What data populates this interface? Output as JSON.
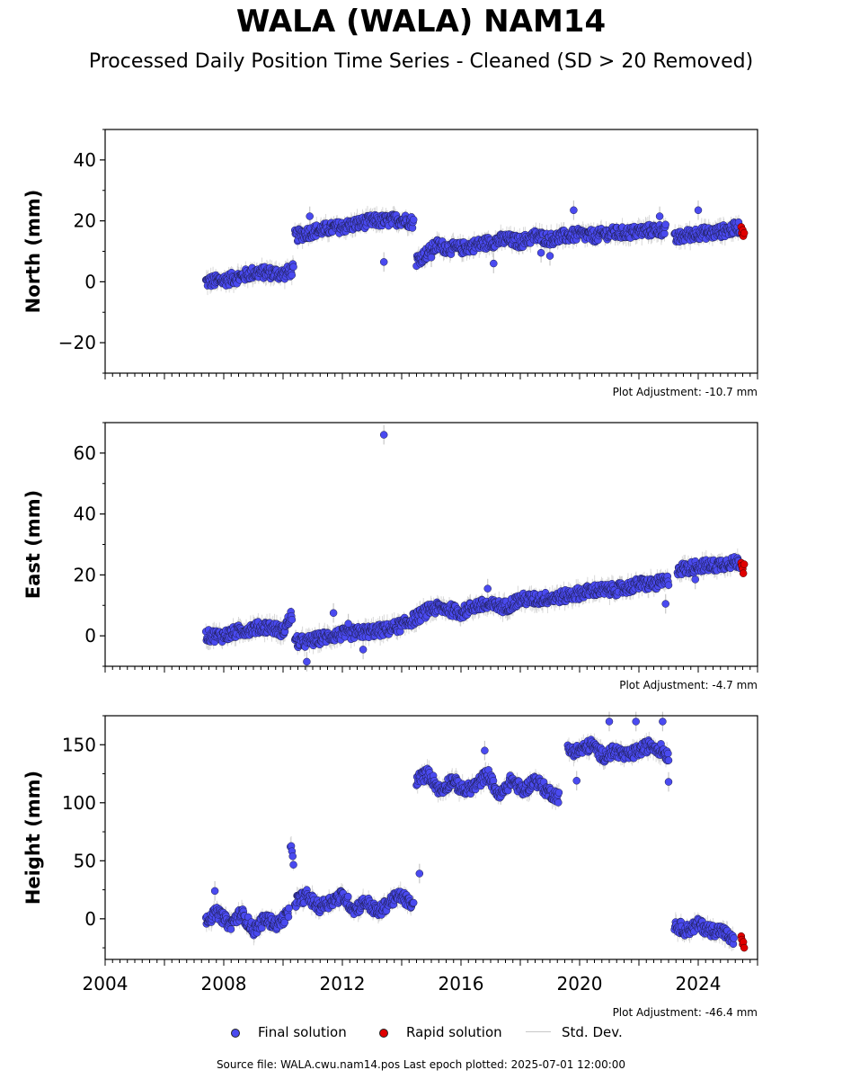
{
  "title": "WALA (WALA) NAM14",
  "subtitle": "Processed Daily Position Time Series - Cleaned (SD > 20 Removed)",
  "legend": {
    "final_label": "Final solution",
    "rapid_label": "Rapid solution",
    "std_label": "Std. Dev."
  },
  "footer": {
    "source": "Source file: WALA.cwu.nam14.pos  Last epoch plotted: 2025-07-01 12:00:00"
  },
  "colors": {
    "final": "#4a4af0",
    "rapid": "#e00000",
    "stddev": "#c8c8c8"
  },
  "chart_data": [
    {
      "type": "scatter",
      "component": "north",
      "ylabel": "North (mm)",
      "adjustment_label": "Plot Adjustment: -10.7 mm",
      "xlim": [
        2004.0,
        2026.0
      ],
      "ylim": [
        -30,
        50
      ],
      "yticks": [
        -20,
        0,
        20,
        40
      ],
      "ytick_labels": [
        "−20",
        "0",
        "20",
        "40"
      ],
      "x_tick_labels": [],
      "series": [
        {
          "name": "Final solution",
          "segments": [
            {
              "x": [
                2007.4,
                2008.0,
                2008.5,
                2009.0,
                2009.5,
                2010.0,
                2010.35
              ],
              "y": [
                0,
                0.5,
                1.5,
                3,
                3,
                2.5,
                4
              ]
            },
            {
              "x": [
                2010.4,
                2010.8,
                2011.2,
                2011.6,
                2012.0,
                2012.5,
                2013.0,
                2013.5,
                2014.0,
                2014.4
              ],
              "y": [
                15,
                16,
                17,
                17.5,
                18,
                19,
                20,
                20,
                20.5,
                19.5
              ]
            },
            {
              "x": [
                2014.5,
                2014.8,
                2015.2,
                2015.6,
                2016.0,
                2016.5,
                2017.0,
                2017.5,
                2018.0,
                2018.5,
                2019.0,
                2019.5,
                2020.0,
                2020.5,
                2021.0,
                2021.5,
                2022.0,
                2022.5,
                2022.9
              ],
              "y": [
                7,
                9,
                12,
                11,
                11,
                12,
                13,
                14,
                13,
                15,
                14,
                15,
                15.5,
                15,
                16,
                16,
                16.5,
                17,
                17
              ]
            },
            {
              "x": [
                2023.2,
                2023.5,
                2024.0,
                2024.5,
                2025.0,
                2025.4
              ],
              "y": [
                14,
                15,
                16,
                16,
                17,
                18
              ]
            }
          ],
          "outliers": {
            "x": [
              2010.9,
              2013.4,
              2017.1,
              2018.7,
              2019.0,
              2019.8,
              2022.7,
              2024.0,
              2015.0
            ],
            "y": [
              21.5,
              6.5,
              6,
              9.5,
              8.5,
              23.5,
              21.5,
              23.5,
              8
            ]
          }
        },
        {
          "name": "Rapid solution",
          "x": [
            2025.45,
            2025.47,
            2025.5,
            2025.52,
            2025.55
          ],
          "y": [
            18,
            16,
            17,
            15,
            16
          ]
        }
      ]
    },
    {
      "type": "scatter",
      "component": "east",
      "ylabel": "East (mm)",
      "adjustment_label": "Plot Adjustment: -4.7 mm",
      "xlim": [
        2004.0,
        2026.0
      ],
      "ylim": [
        -10,
        70
      ],
      "yticks": [
        0,
        20,
        40,
        60
      ],
      "ytick_labels": [
        "0",
        "20",
        "40",
        "60"
      ],
      "x_tick_labels": [],
      "series": [
        {
          "name": "Final solution",
          "segments": [
            {
              "x": [
                2007.4,
                2008.0,
                2008.5,
                2009.0,
                2009.5,
                2010.0,
                2010.3
              ],
              "y": [
                0,
                0,
                1.5,
                2.5,
                3,
                1.5,
                7
              ]
            },
            {
              "x": [
                2010.4,
                2010.8,
                2011.2,
                2011.6,
                2012.0,
                2012.5,
                2013.0,
                2013.5,
                2014.0,
                2014.5,
                2015.0,
                2015.5,
                2016.0,
                2016.5,
                2017.0,
                2017.5,
                2018.0,
                2018.5,
                2019.0,
                2019.5,
                2020.0,
                2020.5,
                2021.0,
                2021.5,
                2022.0,
                2022.5,
                2023.0
              ],
              "y": [
                -2,
                -2,
                -1,
                0,
                0.5,
                1,
                1.5,
                2,
                3.5,
                6,
                9,
                9,
                7.5,
                10,
                10,
                9.5,
                12,
                12,
                12.5,
                13,
                14,
                15,
                15,
                15.5,
                17,
                17,
                18
              ]
            },
            {
              "x": [
                2023.3,
                2023.6,
                2024.0,
                2024.5,
                2025.0,
                2025.4
              ],
              "y": [
                22,
                22,
                23,
                23,
                24,
                24
              ]
            }
          ],
          "outliers": {
            "x": [
              2013.4,
              2010.8,
              2011.7,
              2012.7,
              2016.9,
              2022.9,
              2023.9,
              2012.2
            ],
            "y": [
              66,
              -8.5,
              7.5,
              -4.5,
              15.5,
              10.5,
              18.5,
              4
            ]
          }
        },
        {
          "name": "Rapid solution",
          "x": [
            2025.45,
            2025.47,
            2025.5,
            2025.52,
            2025.55
          ],
          "y": [
            24,
            23,
            22,
            20.5,
            23.5
          ]
        }
      ]
    },
    {
      "type": "scatter",
      "component": "height",
      "ylabel": "Height (mm)",
      "adjustment_label": "Plot Adjustment: -46.4 mm",
      "xlim": [
        2004.0,
        2026.0
      ],
      "ylim": [
        -35,
        175
      ],
      "yticks": [
        0,
        50,
        100,
        150
      ],
      "ytick_labels": [
        "0",
        "50",
        "100",
        "150"
      ],
      "x_tick_values": [
        2004,
        2008,
        2012,
        2016,
        2020,
        2024
      ],
      "x_tick_labels": [
        "2004",
        "2008",
        "2012",
        "2016",
        "2020",
        "2024"
      ],
      "series": [
        {
          "name": "Final solution",
          "segments": [
            {
              "x": [
                2007.4,
                2007.8,
                2008.2,
                2008.6,
                2009.0,
                2009.4,
                2009.8,
                2010.2
              ],
              "y": [
                0,
                5,
                -5,
                5,
                -10,
                0,
                -5,
                5
              ]
            },
            {
              "x": [
                2010.25,
                2010.35
              ],
              "y": [
                60,
                50
              ]
            },
            {
              "x": [
                2010.4,
                2010.8,
                2011.2,
                2011.6,
                2012.0,
                2012.4,
                2012.8,
                2013.2,
                2013.6,
                2014.0,
                2014.4
              ],
              "y": [
                15,
                20,
                10,
                15,
                20,
                8,
                15,
                5,
                15,
                20,
                10
              ]
            },
            {
              "x": [
                2014.5,
                2014.9,
                2015.3,
                2015.7,
                2016.1,
                2016.5,
                2016.9,
                2017.3,
                2017.7,
                2018.1,
                2018.5,
                2018.9,
                2019.3
              ],
              "y": [
                120,
                125,
                110,
                120,
                110,
                115,
                125,
                105,
                120,
                110,
                120,
                110,
                105
              ]
            },
            {
              "x": [
                2019.6,
                2020.0,
                2020.4,
                2020.8,
                2021.2,
                2021.6,
                2022.0,
                2022.4,
                2022.8,
                2023.0
              ],
              "y": [
                145,
                145,
                150,
                140,
                145,
                140,
                145,
                150,
                145,
                140
              ]
            },
            {
              "x": [
                2023.2,
                2023.6,
                2024.0,
                2024.4,
                2024.8,
                2025.2
              ],
              "y": [
                -5,
                -10,
                -5,
                -10,
                -10,
                -20
              ]
            }
          ],
          "outliers": {
            "x": [
              2007.7,
              2014.6,
              2016.8,
              2019.9,
              2021.0,
              2021.9,
              2022.8,
              2023.0
            ],
            "y": [
              24,
              39,
              145,
              119,
              170,
              170,
              170,
              118
            ]
          }
        },
        {
          "name": "Rapid solution",
          "x": [
            2025.45,
            2025.47,
            2025.5,
            2025.52,
            2025.55
          ],
          "y": [
            -15,
            -18,
            -22,
            -20,
            -25
          ]
        }
      ]
    }
  ]
}
